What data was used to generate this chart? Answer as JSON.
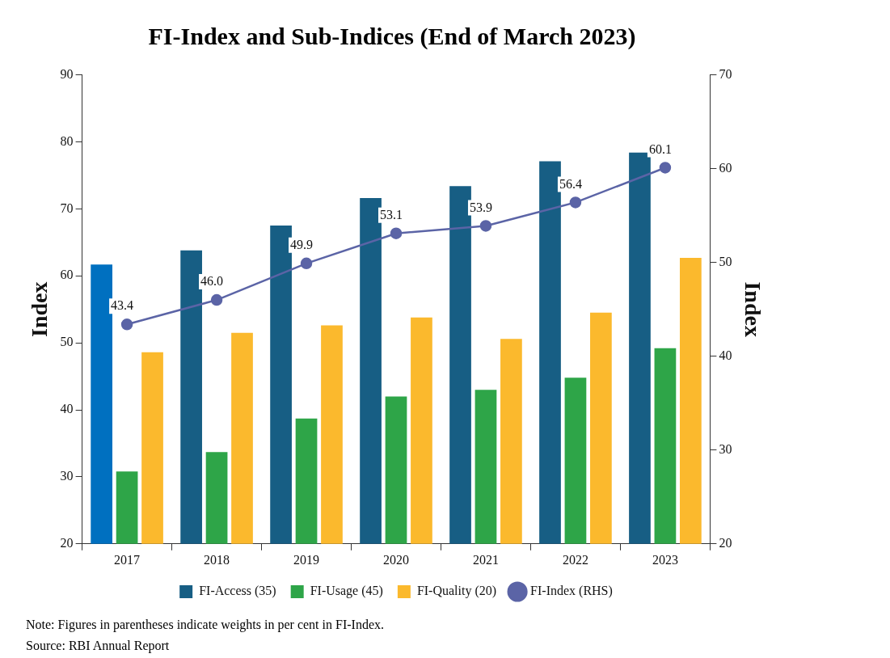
{
  "chart_data": {
    "type": "bar",
    "title": "FI-Index and Sub-Indices (End of March 2023)",
    "ylabel": "Index",
    "y2label": "Index",
    "categories": [
      "2017",
      "2018",
      "2019",
      "2020",
      "2021",
      "2022",
      "2023"
    ],
    "series": [
      {
        "name": "FI-Access (35)",
        "color": "#175e84",
        "colors": [
          "#0070c0",
          "#175e84",
          "#175e84",
          "#175e84",
          "#175e84",
          "#175e84",
          "#175e84"
        ],
        "values": [
          61.7,
          63.8,
          67.5,
          71.6,
          73.4,
          77.1,
          78.4
        ]
      },
      {
        "name": "FI-Usage (45)",
        "color": "#2ea548",
        "values": [
          30.8,
          33.7,
          38.7,
          42.0,
          43.0,
          44.8,
          49.2
        ]
      },
      {
        "name": "FI-Quality (20)",
        "color": "#fbb92d",
        "values": [
          48.6,
          51.5,
          52.6,
          53.8,
          50.6,
          54.5,
          62.7
        ]
      },
      {
        "name": "FI-Index (RHS)",
        "type": "line",
        "axis": "y2",
        "color": "#5b64a6",
        "marker": "circle",
        "values": [
          43.4,
          46.0,
          49.9,
          53.1,
          53.9,
          56.4,
          60.1
        ],
        "value_labels": [
          "43.4",
          "46.0",
          "49.9",
          "53.1",
          "53.9",
          "56.4",
          "60.1"
        ]
      }
    ],
    "ylim": [
      20,
      90
    ],
    "yticks": [
      20,
      30,
      40,
      50,
      60,
      70,
      80,
      90
    ],
    "y2lim": [
      20,
      70
    ],
    "y2ticks": [
      20,
      30,
      40,
      50,
      60,
      70
    ],
    "grid": false,
    "legend": "bottom",
    "annotations": [
      "Note:   Figures in parentheses indicate weights in per cent in FI-Index.",
      "Source: RBI Annual Report"
    ]
  }
}
